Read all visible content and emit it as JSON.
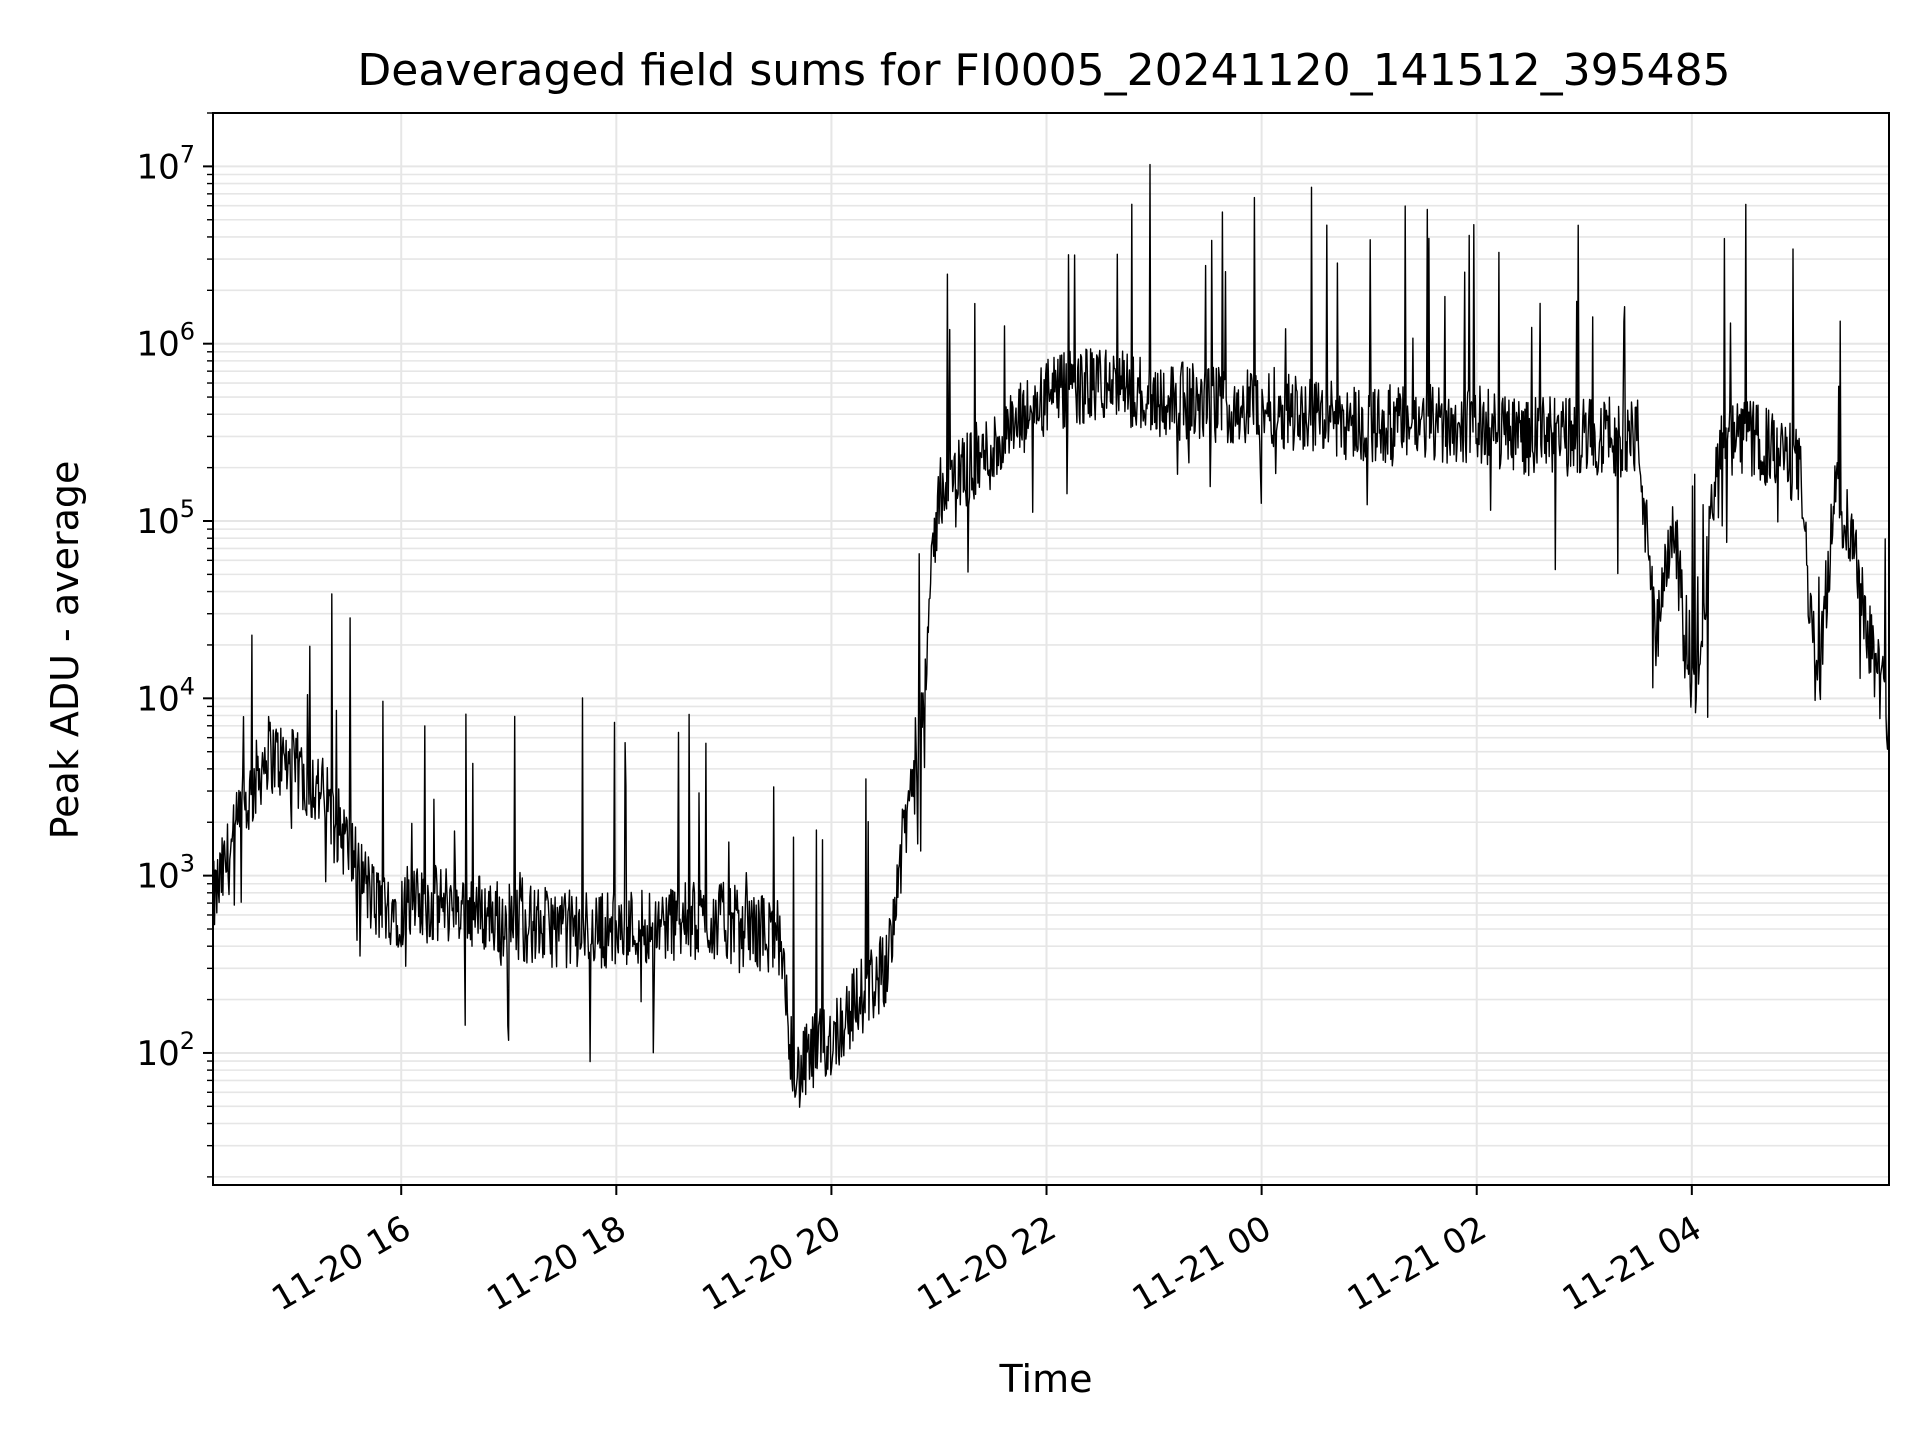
{
  "chart_data": {
    "type": "line",
    "title": "Deaveraged field sums for FI0005_20241120_141512_395485",
    "xlabel": "Time",
    "ylabel": "Peak ADU - average",
    "y_scale": "log",
    "ylim": [
      18,
      20000000
    ],
    "xlim": [
      "2024-11-20 14:15",
      "2024-11-21 05:50"
    ],
    "grid": true,
    "line_color": "#000000",
    "x_ticks": [
      "11-20 16",
      "11-20 18",
      "11-20 20",
      "11-20 22",
      "11-21 00",
      "11-21 02",
      "11-21 04"
    ],
    "y_ticks": [
      {
        "base": "10",
        "exp": "2"
      },
      {
        "base": "10",
        "exp": "3"
      },
      {
        "base": "10",
        "exp": "4"
      },
      {
        "base": "10",
        "exp": "5"
      },
      {
        "base": "10",
        "exp": "6"
      },
      {
        "base": "10",
        "exp": "7"
      }
    ],
    "series": [
      {
        "x": [
          "2024-11-20 14:15",
          "2024-11-20 14:30",
          "2024-11-20 14:45",
          "2024-11-20 15:00",
          "2024-11-20 15:15",
          "2024-11-20 15:30",
          "2024-11-20 15:45",
          "2024-11-20 16:00",
          "2024-11-20 16:30",
          "2024-11-20 17:00",
          "2024-11-20 17:30",
          "2024-11-20 18:00",
          "2024-11-20 18:30",
          "2024-11-20 19:00",
          "2024-11-20 19:30",
          "2024-11-20 19:40",
          "2024-11-20 19:50",
          "2024-11-20 20:00",
          "2024-11-20 20:15",
          "2024-11-20 20:30",
          "2024-11-20 20:40",
          "2024-11-20 20:50",
          "2024-11-20 21:00",
          "2024-11-20 21:10",
          "2024-11-20 21:30",
          "2024-11-20 22:00",
          "2024-11-20 22:30",
          "2024-11-20 23:00",
          "2024-11-20 23:30",
          "2024-11-21 00:00",
          "2024-11-21 00:30",
          "2024-11-21 01:00",
          "2024-11-21 01:30",
          "2024-11-21 02:00",
          "2024-11-21 02:30",
          "2024-11-21 03:00",
          "2024-11-21 03:30",
          "2024-11-21 03:40",
          "2024-11-21 03:50",
          "2024-11-21 04:00",
          "2024-11-21 04:15",
          "2024-11-21 04:30",
          "2024-11-21 04:45",
          "2024-11-21 05:00",
          "2024-11-21 05:10",
          "2024-11-21 05:20",
          "2024-11-21 05:30",
          "2024-11-21 05:40",
          "2024-11-21 05:50"
        ],
        "y": [
          700,
          2000,
          5000,
          4000,
          3000,
          1500,
          700,
          650,
          700,
          550,
          500,
          500,
          550,
          550,
          450,
          70,
          100,
          120,
          200,
          300,
          1500,
          8000,
          150000,
          180000,
          250000,
          500000,
          600000,
          500000,
          450000,
          450000,
          400000,
          350000,
          350000,
          350000,
          300000,
          300000,
          300000,
          20000,
          100000,
          8000,
          250000,
          300000,
          250000,
          200000,
          10000,
          150000,
          80000,
          20000,
          8000
        ]
      }
    ]
  }
}
